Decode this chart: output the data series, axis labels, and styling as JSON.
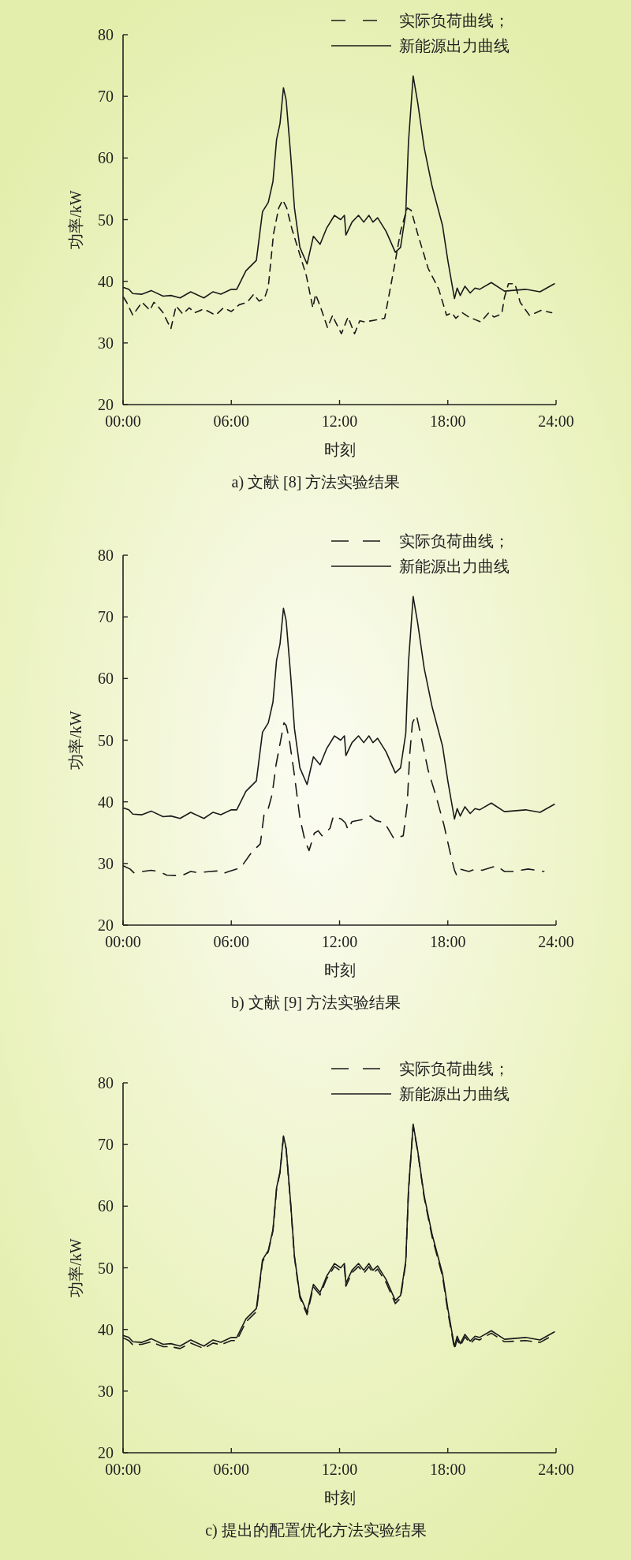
{
  "chart_data": [
    {
      "type": "line",
      "xlim": [
        0,
        24
      ],
      "ylim": [
        20,
        80
      ],
      "xticks": [
        {
          "value": 0,
          "label": "00:00"
        },
        {
          "value": 6,
          "label": "06:00"
        },
        {
          "value": 12,
          "label": "12:00"
        },
        {
          "value": 18,
          "label": "18:00"
        },
        {
          "value": 24,
          "label": "24:00"
        }
      ],
      "yticks": [
        20,
        30,
        40,
        50,
        60,
        70,
        80
      ],
      "xlabel": "时刻",
      "ylabel": "功率/kW",
      "legend": "top right",
      "annotations": [
        "a) 文献 [8] 方法实验结果"
      ],
      "x": [
        0.03,
        0.32,
        0.54,
        1.05,
        1.56,
        2.22,
        2.65,
        3.16,
        3.75,
        4.48,
        4.99,
        5.42,
        6.0,
        6.3,
        6.81,
        7.39,
        7.73,
        8.05,
        8.31,
        8.51,
        8.7,
        8.89,
        9.04,
        9.29,
        9.5,
        9.8,
        10.2,
        10.55,
        10.92,
        11.28,
        11.72,
        12.06,
        12.27,
        12.35,
        12.69,
        13.05,
        13.34,
        13.63,
        13.85,
        14.11,
        14.58,
        15.09,
        15.38,
        15.67,
        15.82,
        16.08,
        16.33,
        16.69,
        17.13,
        17.71,
        18.0,
        18.37,
        18.52,
        18.69,
        18.95,
        19.24,
        19.51,
        19.76,
        20.41,
        21.14,
        22.31,
        23.11,
        23.91
      ],
      "series": [
        {
          "name": "实际负荷曲线；",
          "color": "#1a1a1a",
          "line_style": "dashed",
          "x": [
            0.03,
            0.2,
            0.54,
            1.05,
            1.49,
            1.71,
            1.92,
            2.22,
            2.65,
            2.94,
            3.31,
            3.67,
            3.96,
            4.48,
            5.13,
            5.57,
            6.0,
            6.44,
            6.88,
            7.24,
            7.54,
            7.83,
            8.05,
            8.34,
            8.63,
            8.85,
            9.07,
            9.36,
            9.8,
            10.16,
            10.52,
            10.67,
            10.96,
            11.33,
            11.62,
            11.74,
            12.1,
            12.47,
            12.83,
            13.12,
            13.41,
            14.5,
            15.02,
            15.38,
            15.75,
            15.97,
            16.33,
            16.91,
            17.5,
            17.93,
            18.22,
            18.44,
            18.8,
            19.17,
            19.83,
            20.27,
            20.56,
            20.99,
            21.14,
            21.36,
            21.72,
            22.01,
            22.52,
            22.89,
            23.18,
            23.76
          ],
          "values": [
            37.4,
            36.6,
            34.5,
            36.6,
            35.3,
            36.6,
            36.0,
            34.9,
            32.3,
            36.0,
            34.7,
            35.7,
            34.9,
            35.5,
            34.5,
            35.7,
            35.1,
            36.2,
            36.6,
            37.9,
            36.8,
            37.2,
            39.1,
            47.7,
            51.9,
            53.2,
            51.9,
            48.5,
            44.3,
            40.9,
            35.7,
            37.9,
            35.7,
            32.5,
            34.5,
            33.6,
            31.5,
            34.2,
            31.5,
            33.6,
            33.4,
            34.0,
            42.1,
            48.1,
            51.9,
            51.5,
            47.7,
            42.1,
            38.7,
            34.5,
            34.9,
            34.0,
            34.9,
            34.2,
            33.4,
            34.9,
            34.2,
            34.7,
            37.4,
            39.6,
            39.6,
            36.6,
            34.5,
            34.9,
            35.3,
            34.9
          ]
        },
        {
          "name": "新能源出力曲线",
          "color": "#1a1a1a",
          "line_style": "solid",
          "values": [
            39.0,
            38.7,
            38.0,
            37.9,
            38.5,
            37.6,
            37.7,
            37.3,
            38.3,
            37.3,
            38.3,
            37.9,
            38.7,
            38.7,
            41.7,
            43.4,
            51.3,
            52.8,
            56.2,
            63.0,
            65.6,
            71.4,
            69.4,
            60.5,
            51.9,
            45.5,
            42.8,
            47.3,
            46.0,
            48.6,
            50.7,
            50.0,
            50.7,
            47.5,
            49.6,
            50.7,
            49.6,
            50.7,
            49.6,
            50.3,
            48.1,
            44.7,
            45.5,
            51.1,
            62.6,
            73.3,
            69.0,
            61.7,
            55.4,
            49.0,
            43.4,
            37.2,
            38.9,
            37.7,
            39.2,
            38.1,
            38.9,
            38.7,
            39.8,
            38.4,
            38.7,
            38.3,
            39.6
          ]
        }
      ]
    },
    {
      "type": "line",
      "xlim": [
        0,
        24
      ],
      "ylim": [
        20,
        80
      ],
      "xticks": [
        {
          "value": 0,
          "label": "00:00"
        },
        {
          "value": 6,
          "label": "06:00"
        },
        {
          "value": 12,
          "label": "12:00"
        },
        {
          "value": 18,
          "label": "18:00"
        },
        {
          "value": 24,
          "label": "24:00"
        }
      ],
      "yticks": [
        20,
        30,
        40,
        50,
        60,
        70,
        80
      ],
      "xlabel": "时刻",
      "ylabel": "功率/kW",
      "legend": "top right",
      "annotations": [
        "b) 文献 [9] 方法实验结果"
      ],
      "x": [
        0.03,
        0.32,
        0.54,
        1.05,
        1.56,
        2.22,
        2.65,
        3.16,
        3.75,
        4.48,
        4.99,
        5.42,
        6.0,
        6.3,
        6.81,
        7.39,
        7.73,
        8.05,
        8.31,
        8.51,
        8.7,
        8.89,
        9.04,
        9.29,
        9.5,
        9.8,
        10.2,
        10.55,
        10.92,
        11.28,
        11.72,
        12.06,
        12.27,
        12.35,
        12.69,
        13.05,
        13.34,
        13.63,
        13.85,
        14.11,
        14.58,
        15.09,
        15.38,
        15.67,
        15.82,
        16.08,
        16.33,
        16.69,
        17.13,
        17.71,
        18.0,
        18.37,
        18.52,
        18.69,
        18.95,
        19.24,
        19.51,
        19.76,
        20.41,
        21.14,
        22.31,
        23.11,
        23.91
      ],
      "series": [
        {
          "name": "实际负荷曲线；",
          "color": "#1a1a1a",
          "line_style": "dashed",
          "x": [
            0.03,
            0.39,
            0.6,
            0.83,
            1.56,
            2.0,
            2.43,
            3.24,
            3.75,
            4.18,
            4.84,
            5.28,
            5.57,
            5.86,
            6.52,
            7.1,
            7.61,
            7.83,
            8.05,
            8.27,
            8.48,
            8.7,
            8.92,
            9.04,
            9.21,
            9.5,
            9.8,
            10.09,
            10.31,
            10.6,
            10.82,
            11.03,
            11.47,
            11.66,
            12.1,
            12.32,
            12.47,
            12.69,
            13.41,
            13.7,
            13.99,
            14.5,
            15.02,
            15.53,
            15.75,
            15.89,
            16.04,
            16.26,
            16.48,
            16.91,
            17.35,
            17.79,
            18.15,
            18.37,
            18.49,
            18.66,
            19.17,
            19.54,
            19.9,
            20.7,
            21.14,
            21.58,
            22.45,
            23.33
          ],
          "values": [
            29.6,
            29.1,
            28.5,
            28.6,
            28.9,
            28.7,
            28.1,
            28.0,
            28.7,
            28.5,
            28.7,
            28.8,
            28.4,
            28.7,
            29.3,
            31.7,
            33.2,
            38.3,
            38.9,
            41.3,
            46.0,
            49.4,
            52.8,
            52.4,
            50.2,
            44.3,
            37.4,
            33.6,
            32.1,
            34.9,
            35.3,
            34.5,
            35.7,
            37.7,
            37.2,
            36.6,
            35.5,
            36.8,
            37.2,
            37.7,
            37.0,
            36.6,
            34.0,
            34.5,
            39.6,
            47.7,
            52.8,
            54.1,
            51.1,
            45.1,
            40.9,
            36.2,
            31.5,
            28.9,
            28.1,
            29.1,
            28.7,
            29.1,
            28.9,
            29.6,
            28.7,
            28.7,
            29.1,
            28.7
          ]
        },
        {
          "name": "新能源出力曲线",
          "color": "#1a1a1a",
          "line_style": "solid",
          "values": [
            39.0,
            38.7,
            38.0,
            37.9,
            38.5,
            37.6,
            37.7,
            37.3,
            38.3,
            37.3,
            38.3,
            37.9,
            38.7,
            38.7,
            41.7,
            43.4,
            51.3,
            52.8,
            56.2,
            63.0,
            65.6,
            71.4,
            69.4,
            60.5,
            51.9,
            45.5,
            42.8,
            47.3,
            46.0,
            48.6,
            50.7,
            50.0,
            50.7,
            47.5,
            49.6,
            50.7,
            49.6,
            50.7,
            49.6,
            50.3,
            48.1,
            44.7,
            45.5,
            51.1,
            62.6,
            73.3,
            69.0,
            61.7,
            55.4,
            49.0,
            43.4,
            37.2,
            38.9,
            37.7,
            39.2,
            38.1,
            38.9,
            38.7,
            39.8,
            38.4,
            38.7,
            38.3,
            39.6
          ]
        }
      ]
    },
    {
      "type": "line",
      "xlim": [
        0,
        24
      ],
      "ylim": [
        20,
        80
      ],
      "xticks": [
        {
          "value": 0,
          "label": "00:00"
        },
        {
          "value": 6,
          "label": "06:00"
        },
        {
          "value": 12,
          "label": "12:00"
        },
        {
          "value": 18,
          "label": "18:00"
        },
        {
          "value": 24,
          "label": "24:00"
        }
      ],
      "yticks": [
        20,
        30,
        40,
        50,
        60,
        70,
        80
      ],
      "xlabel": "时刻",
      "ylabel": "功率/kW",
      "legend": "top right",
      "annotations": [
        "c) 提出的配置优化方法实验结果"
      ],
      "x": [
        0.03,
        0.32,
        0.54,
        1.05,
        1.56,
        2.22,
        2.65,
        3.16,
        3.75,
        4.48,
        4.99,
        5.42,
        6.0,
        6.3,
        6.81,
        7.39,
        7.73,
        8.05,
        8.31,
        8.51,
        8.7,
        8.89,
        9.04,
        9.29,
        9.5,
        9.8,
        10.2,
        10.55,
        10.92,
        11.28,
        11.72,
        12.06,
        12.27,
        12.35,
        12.69,
        13.05,
        13.34,
        13.63,
        13.85,
        14.11,
        14.58,
        15.09,
        15.38,
        15.67,
        15.82,
        16.08,
        16.33,
        16.69,
        17.13,
        17.71,
        18.0,
        18.37,
        18.52,
        18.69,
        18.95,
        19.24,
        19.51,
        19.76,
        20.41,
        21.14,
        22.31,
        23.11,
        23.91
      ],
      "series": [
        {
          "name": "实际负荷曲线；",
          "color": "#1a1a1a",
          "line_style": "dashed",
          "values": [
            38.6,
            38.2,
            37.5,
            37.6,
            38.0,
            37.2,
            37.2,
            36.9,
            37.8,
            36.9,
            37.8,
            37.5,
            38.2,
            38.2,
            41.2,
            42.9,
            51.0,
            52.6,
            56.0,
            62.8,
            65.4,
            71.2,
            69.2,
            60.3,
            51.7,
            45.2,
            42.4,
            46.9,
            45.6,
            48.2,
            50.2,
            49.5,
            50.2,
            47.0,
            49.2,
            50.2,
            49.1,
            50.2,
            49.1,
            49.8,
            47.6,
            44.2,
            45.1,
            50.8,
            62.4,
            73.1,
            68.8,
            61.4,
            55.0,
            48.6,
            42.9,
            36.8,
            38.4,
            37.3,
            38.8,
            37.7,
            38.5,
            38.3,
            39.4,
            38.0,
            38.2,
            37.9,
            39.2
          ]
        },
        {
          "name": "新能源出力曲线",
          "color": "#1a1a1a",
          "line_style": "solid",
          "values": [
            39.0,
            38.7,
            38.0,
            37.9,
            38.5,
            37.6,
            37.7,
            37.3,
            38.3,
            37.3,
            38.3,
            37.9,
            38.7,
            38.7,
            41.7,
            43.4,
            51.3,
            52.8,
            56.2,
            63.0,
            65.6,
            71.4,
            69.4,
            60.5,
            51.9,
            45.5,
            42.8,
            47.3,
            46.0,
            48.6,
            50.7,
            50.0,
            50.7,
            47.5,
            49.6,
            50.7,
            49.6,
            50.7,
            49.6,
            50.3,
            48.1,
            44.7,
            45.5,
            51.1,
            62.6,
            73.3,
            69.0,
            61.7,
            55.4,
            49.0,
            43.4,
            37.2,
            38.9,
            37.7,
            39.2,
            38.1,
            38.9,
            38.7,
            39.8,
            38.4,
            38.7,
            38.3,
            39.6
          ]
        }
      ]
    }
  ]
}
